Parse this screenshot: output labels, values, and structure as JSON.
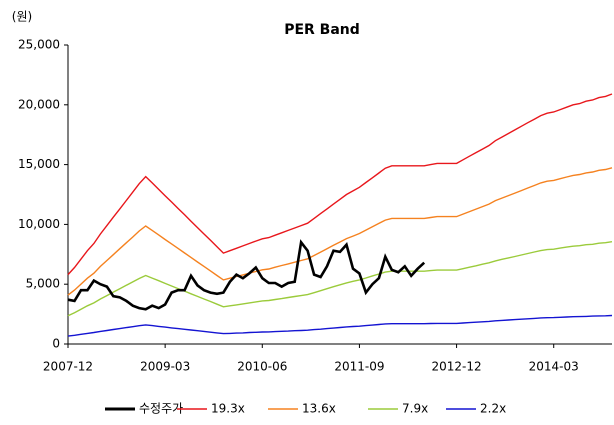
{
  "chart_data": {
    "type": "line",
    "title": "PER Band",
    "y_label": "(원)",
    "x": [
      "2007-12",
      "2008-01",
      "2008-02",
      "2008-03",
      "2008-04",
      "2008-05",
      "2008-06",
      "2008-07",
      "2008-08",
      "2008-09",
      "2008-10",
      "2008-11",
      "2008-12",
      "2009-01",
      "2009-02",
      "2009-03",
      "2009-04",
      "2009-05",
      "2009-06",
      "2009-07",
      "2009-08",
      "2009-09",
      "2009-10",
      "2009-11",
      "2009-12",
      "2010-01",
      "2010-02",
      "2010-03",
      "2010-04",
      "2010-05",
      "2010-06",
      "2010-07",
      "2010-08",
      "2010-09",
      "2010-10",
      "2010-11",
      "2010-12",
      "2011-01",
      "2011-02",
      "2011-03",
      "2011-04",
      "2011-05",
      "2011-06",
      "2011-07",
      "2011-08",
      "2011-09",
      "2011-10",
      "2011-11",
      "2011-12",
      "2012-01",
      "2012-02",
      "2012-03",
      "2012-04",
      "2012-05",
      "2012-06",
      "2012-07",
      "2012-08",
      "2012-09",
      "2012-10",
      "2012-11",
      "2012-12",
      "2013-01",
      "2013-02",
      "2013-03",
      "2013-04",
      "2013-05",
      "2013-06",
      "2013-07",
      "2013-08",
      "2013-09",
      "2013-10",
      "2013-11",
      "2013-12",
      "2014-01",
      "2014-02",
      "2014-03",
      "2014-04",
      "2014-05",
      "2014-06",
      "2014-07",
      "2014-08",
      "2014-09",
      "2014-10",
      "2014-11",
      "2014-12"
    ],
    "xticks": [
      "2007-12",
      "2009-03",
      "2010-06",
      "2011-09",
      "2012-12",
      "2014-03"
    ],
    "ylim": [
      0,
      25000
    ],
    "yticks": [
      0,
      {
        "value": 5000,
        "label": "5,000"
      },
      {
        "value": 10000,
        "label": "10,000"
      },
      {
        "value": 15000,
        "label": "15,000"
      },
      {
        "value": 20000,
        "label": "20,000"
      },
      {
        "value": 25000,
        "label": "25,000"
      }
    ],
    "legend": "bottom",
    "series": [
      {
        "name": "수정주가",
        "color": "#000000",
        "values": [
          3700,
          3600,
          4500,
          4500,
          5300,
          5000,
          4800,
          4000,
          3900,
          3600,
          3200,
          3000,
          2900,
          3200,
          3000,
          3300,
          4300,
          4500,
          4500,
          5700,
          4900,
          4500,
          4300,
          4200,
          4300,
          5200,
          5800,
          5500,
          5900,
          6400,
          5500,
          5100,
          5100,
          4800,
          5100,
          5200,
          8500,
          7800,
          5800,
          5600,
          6500,
          7800,
          7700,
          8300,
          6300,
          5900,
          4300,
          5000,
          5500,
          7300,
          6200,
          6000,
          6500,
          5700,
          6300,
          6800,
          null,
          null,
          null,
          null,
          null,
          null,
          null,
          null,
          null,
          null,
          null,
          null,
          null,
          null,
          null,
          null,
          null,
          null,
          null,
          null,
          null,
          null,
          null,
          null,
          null,
          null,
          null,
          null,
          null
        ]
      },
      {
        "name": "19.3x",
        "color": "#e8171c",
        "values": [
          5800,
          6400,
          7100,
          7800,
          8400,
          9200,
          9900,
          10600,
          11300,
          12000,
          12700,
          13400,
          14000,
          13470,
          12930,
          12400,
          11870,
          11330,
          10800,
          10270,
          9730,
          9200,
          8670,
          8130,
          7600,
          7800,
          8000,
          8200,
          8400,
          8600,
          8800,
          8900,
          9100,
          9300,
          9500,
          9700,
          9900,
          10100,
          10500,
          10900,
          11300,
          11700,
          12100,
          12500,
          12800,
          13100,
          13500,
          13900,
          14300,
          14700,
          14900,
          14900,
          14900,
          14900,
          14900,
          14900,
          15000,
          15100,
          15100,
          15100,
          15100,
          15400,
          15700,
          16000,
          16300,
          16600,
          17000,
          17300,
          17600,
          17900,
          18200,
          18500,
          18800,
          19100,
          19300,
          19400,
          19600,
          19800,
          20000,
          20100,
          20300,
          20400,
          20600,
          20700,
          20900
        ]
      },
      {
        "name": "13.6x",
        "color": "#f58220",
        "values": [
          4090,
          4510,
          5010,
          5500,
          5920,
          6490,
          6980,
          7470,
          7970,
          8460,
          8950,
          9450,
          9870,
          9500,
          9120,
          8740,
          8370,
          7990,
          7610,
          7240,
          6860,
          6490,
          6110,
          5730,
          5360,
          5500,
          5640,
          5780,
          5920,
          6060,
          6200,
          6270,
          6420,
          6560,
          6700,
          6840,
          6980,
          7120,
          7400,
          7680,
          7970,
          8250,
          8530,
          8810,
          9020,
          9240,
          9520,
          9800,
          10080,
          10360,
          10500,
          10500,
          10500,
          10500,
          10500,
          10500,
          10580,
          10650,
          10650,
          10650,
          10650,
          10860,
          11070,
          11280,
          11490,
          11700,
          11990,
          12200,
          12410,
          12620,
          12830,
          13040,
          13250,
          13470,
          13610,
          13680,
          13820,
          13960,
          14100,
          14170,
          14310,
          14380,
          14520,
          14590,
          14730
        ]
      },
      {
        "name": "7.9x",
        "color": "#9bcb3b",
        "values": [
          2370,
          2620,
          2900,
          3190,
          3440,
          3760,
          4050,
          4340,
          4620,
          4910,
          5190,
          5480,
          5730,
          5510,
          5290,
          5070,
          4850,
          4630,
          4420,
          4200,
          3980,
          3760,
          3550,
          3330,
          3110,
          3190,
          3270,
          3350,
          3440,
          3520,
          3600,
          3640,
          3720,
          3800,
          3890,
          3970,
          4050,
          4130,
          4290,
          4460,
          4620,
          4790,
          4950,
          5110,
          5240,
          5360,
          5520,
          5690,
          5850,
          6010,
          6090,
          6090,
          6090,
          6090,
          6090,
          6090,
          6140,
          6180,
          6180,
          6180,
          6180,
          6300,
          6420,
          6540,
          6670,
          6790,
          6950,
          7080,
          7200,
          7320,
          7440,
          7570,
          7690,
          7810,
          7890,
          7930,
          8020,
          8100,
          8180,
          8220,
          8300,
          8340,
          8430,
          8470,
          8550
        ]
      },
      {
        "name": "2.2x",
        "color": "#1414d2",
        "values": [
          660,
          730,
          810,
          890,
          960,
          1050,
          1130,
          1210,
          1290,
          1370,
          1450,
          1530,
          1600,
          1540,
          1470,
          1410,
          1350,
          1290,
          1230,
          1170,
          1110,
          1050,
          990,
          930,
          870,
          890,
          910,
          930,
          960,
          980,
          1000,
          1010,
          1040,
          1060,
          1080,
          1110,
          1130,
          1150,
          1200,
          1240,
          1290,
          1330,
          1380,
          1430,
          1460,
          1490,
          1540,
          1580,
          1630,
          1680,
          1700,
          1700,
          1700,
          1700,
          1700,
          1700,
          1710,
          1720,
          1720,
          1720,
          1720,
          1760,
          1790,
          1820,
          1860,
          1890,
          1940,
          1970,
          2010,
          2040,
          2070,
          2110,
          2140,
          2180,
          2200,
          2210,
          2230,
          2260,
          2280,
          2290,
          2310,
          2330,
          2350,
          2360,
          2380
        ]
      }
    ]
  }
}
